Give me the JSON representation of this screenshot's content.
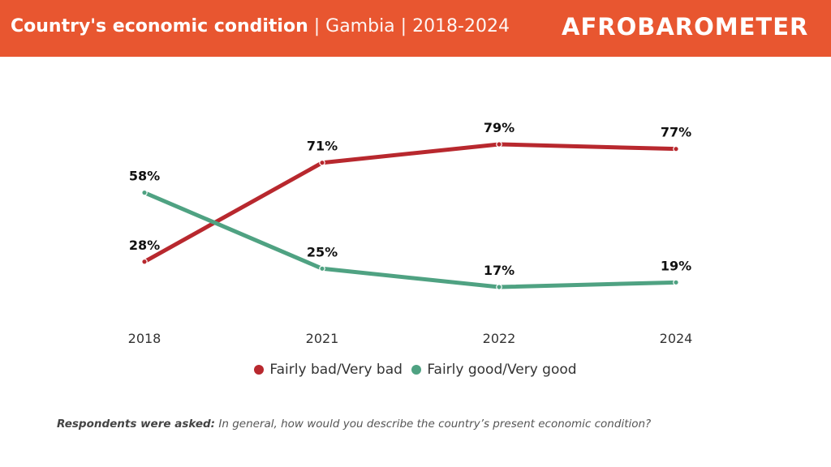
{
  "header": {
    "title_bold": "Country's economic condition",
    "title_rest": " | Gambia | 2018-2024",
    "logo": "AFROBAROMETER",
    "background_color": "#e85630"
  },
  "chart_data": {
    "type": "line",
    "title": "Country's economic condition | Gambia | 2018-2024",
    "xlabel": "",
    "ylabel": "",
    "x": [
      "2018",
      "2021",
      "2022",
      "2024"
    ],
    "grid": false,
    "legend_position": "bottom-center",
    "series": [
      {
        "name": "Fairly bad/Very bad",
        "color": "#b8282e",
        "values": [
          28,
          71,
          79,
          77
        ],
        "labels": [
          "28%",
          "71%",
          "79%",
          "77%"
        ]
      },
      {
        "name": "Fairly good/Very good",
        "color": "#4fa282",
        "values": [
          58,
          25,
          17,
          19
        ],
        "labels": [
          "58%",
          "25%",
          "17%",
          "19%"
        ]
      }
    ]
  },
  "legend": {
    "items": [
      {
        "label": "Fairly bad/Very bad",
        "color": "#b8282e"
      },
      {
        "label": "Fairly good/Very good",
        "color": "#4fa282"
      }
    ]
  },
  "footer": {
    "question_label": "Respondents were asked:",
    "question_text": " In general, how would you describe the country’s present economic condition?"
  }
}
